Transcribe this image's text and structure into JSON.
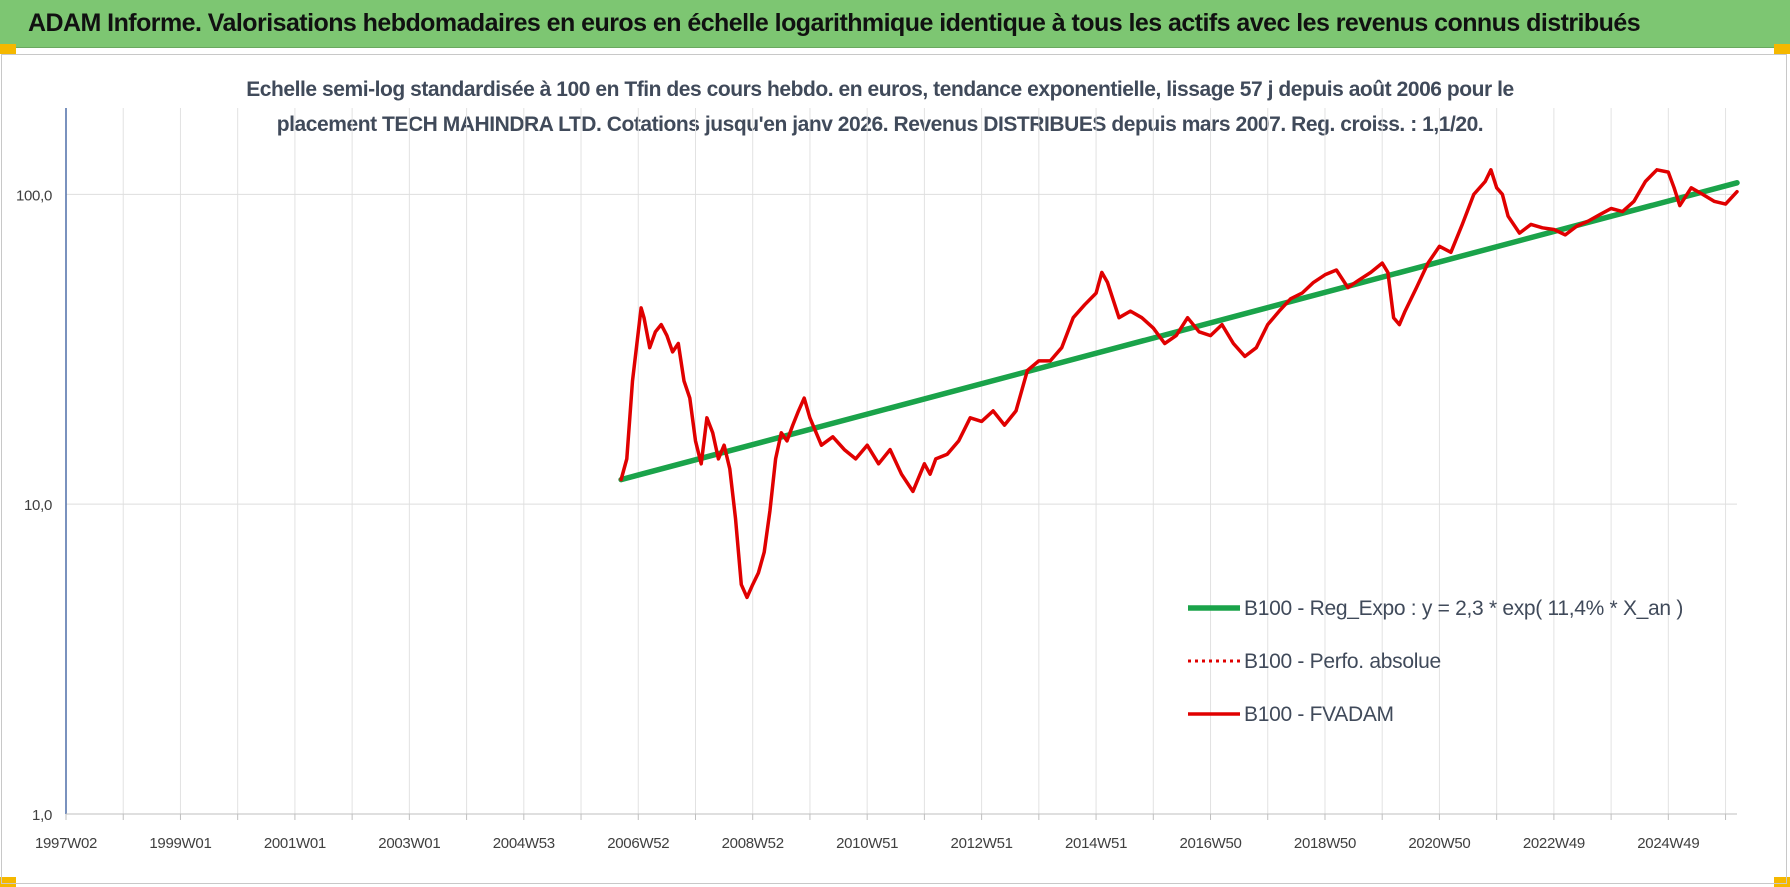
{
  "banner": {
    "title": "ADAM Informe. Valorisations hebdomadaires en euros en échelle logarithmique identique à tous les actifs avec les revenus connus distribués"
  },
  "colors": {
    "banner_bg": "#7dc672",
    "corner_accent": "#f5b800",
    "trend_line": "#1aa34a",
    "perf_line": "#e00000",
    "fvadam_line": "#e00000"
  },
  "chart_data": {
    "type": "line",
    "title_lines": [
      "Echelle semi-log standardisée à 100 en Tfin des cours hebdo. en euros, tendance exponentielle, lissage 57 j depuis août 2006 pour le",
      "placement TECH MAHINDRA  LTD. Cotations jusqu'en janv 2026. Revenus DISTRIBUES depuis mars 2007. Reg. croiss. : 1,1/20."
    ],
    "yscale": "log",
    "ylim": [
      1,
      190
    ],
    "xlim": [
      1997.0,
      2026.2
    ],
    "y_ticks": [
      {
        "value": 1,
        "label": "1,0"
      },
      {
        "value": 10,
        "label": "10,0"
      },
      {
        "value": 100,
        "label": "100,0"
      }
    ],
    "x_ticks": [
      {
        "value": 1997.0,
        "label": "1997W02"
      },
      {
        "value": 1999.0,
        "label": "1999W01"
      },
      {
        "value": 2001.0,
        "label": "2001W01"
      },
      {
        "value": 2003.0,
        "label": "2003W01"
      },
      {
        "value": 2005.0,
        "label": "2004W53"
      },
      {
        "value": 2007.0,
        "label": "2006W52"
      },
      {
        "value": 2009.0,
        "label": "2008W52"
      },
      {
        "value": 2011.0,
        "label": "2010W51"
      },
      {
        "value": 2013.0,
        "label": "2012W51"
      },
      {
        "value": 2015.0,
        "label": "2014W51"
      },
      {
        "value": 2017.0,
        "label": "2016W50"
      },
      {
        "value": 2019.0,
        "label": "2018W50"
      },
      {
        "value": 2021.0,
        "label": "2020W50"
      },
      {
        "value": 2023.0,
        "label": "2022W49"
      },
      {
        "value": 2025.0,
        "label": "2024W49"
      }
    ],
    "x_minor_ticks": [
      1998.0,
      2000.0,
      2002.0,
      2004.0,
      2006.0,
      2008.0,
      2010.0,
      2012.0,
      2014.0,
      2016.0,
      2018.0,
      2020.0,
      2022.0,
      2024.0,
      2026.0
    ],
    "series": [
      {
        "name": "B100 - Reg_Expo : y = 2,3 * exp( 11,4% *  X_an )",
        "style": "solid-thick",
        "x": [
          2006.7,
          2026.2
        ],
        "y": [
          12.0,
          109.0
        ]
      },
      {
        "name": "B100 - Perfo. absolue",
        "style": "dotted",
        "x": [],
        "y": []
      },
      {
        "name": "B100 - FVADAM",
        "style": "solid",
        "x": [
          2006.7,
          2006.8,
          2006.9,
          2007.0,
          2007.05,
          2007.1,
          2007.2,
          2007.3,
          2007.4,
          2007.5,
          2007.6,
          2007.7,
          2007.8,
          2007.9,
          2008.0,
          2008.1,
          2008.2,
          2008.3,
          2008.4,
          2008.5,
          2008.6,
          2008.7,
          2008.8,
          2008.9,
          2009.0,
          2009.1,
          2009.2,
          2009.3,
          2009.4,
          2009.5,
          2009.6,
          2009.7,
          2009.8,
          2009.9,
          2010.0,
          2010.2,
          2010.4,
          2010.6,
          2010.8,
          2011.0,
          2011.2,
          2011.4,
          2011.6,
          2011.8,
          2012.0,
          2012.1,
          2012.2,
          2012.4,
          2012.6,
          2012.8,
          2013.0,
          2013.2,
          2013.4,
          2013.6,
          2013.8,
          2014.0,
          2014.2,
          2014.4,
          2014.6,
          2014.8,
          2015.0,
          2015.1,
          2015.2,
          2015.4,
          2015.6,
          2015.8,
          2016.0,
          2016.2,
          2016.4,
          2016.6,
          2016.8,
          2017.0,
          2017.2,
          2017.4,
          2017.6,
          2017.8,
          2018.0,
          2018.2,
          2018.4,
          2018.6,
          2018.8,
          2019.0,
          2019.2,
          2019.4,
          2019.6,
          2019.8,
          2020.0,
          2020.1,
          2020.2,
          2020.3,
          2020.4,
          2020.6,
          2020.8,
          2021.0,
          2021.2,
          2021.4,
          2021.6,
          2021.8,
          2021.9,
          2022.0,
          2022.1,
          2022.2,
          2022.4,
          2022.6,
          2022.8,
          2023.0,
          2023.2,
          2023.4,
          2023.6,
          2023.8,
          2024.0,
          2024.2,
          2024.4,
          2024.6,
          2024.8,
          2025.0,
          2025.1,
          2025.2,
          2025.4,
          2025.6,
          2025.8,
          2026.0,
          2026.2
        ],
        "y": [
          12.0,
          14.0,
          25.0,
          36.0,
          43.0,
          40.0,
          32.0,
          36.0,
          38.0,
          35.0,
          31.0,
          33.0,
          25.0,
          22.0,
          16.0,
          13.5,
          19.0,
          17.0,
          14.0,
          15.5,
          13.0,
          9.0,
          5.5,
          5.0,
          5.5,
          6.0,
          7.0,
          9.5,
          14.0,
          17.0,
          16.0,
          18.0,
          20.0,
          22.0,
          19.0,
          15.5,
          16.5,
          15.0,
          14.0,
          15.5,
          13.5,
          15.0,
          12.5,
          11.0,
          13.5,
          12.5,
          14.0,
          14.5,
          16.0,
          19.0,
          18.5,
          20.0,
          18.0,
          20.0,
          27.0,
          29.0,
          29.0,
          32.0,
          40.0,
          44.0,
          48.0,
          56.0,
          52.0,
          40.0,
          42.0,
          40.0,
          37.0,
          33.0,
          35.0,
          40.0,
          36.0,
          35.0,
          38.0,
          33.0,
          30.0,
          32.0,
          38.0,
          42.0,
          46.0,
          48.0,
          52.0,
          55.0,
          57.0,
          50.0,
          53.0,
          56.0,
          60.0,
          56.0,
          40.0,
          38.0,
          42.0,
          50.0,
          60.0,
          68.0,
          65.0,
          80.0,
          100.0,
          110.0,
          120.0,
          105.0,
          100.0,
          85.0,
          75.0,
          80.0,
          78.0,
          77.0,
          74.0,
          79.0,
          82.0,
          86.0,
          90.0,
          88.0,
          95.0,
          110.0,
          120.0,
          118.0,
          105.0,
          92.0,
          105.0,
          100.0,
          95.0,
          93.0,
          102.0
        ]
      }
    ],
    "legend": {
      "position": "lower-right",
      "entries": [
        {
          "label": "B100 - Reg_Expo : y = 2,3 * exp( 11,4% *  X_an )",
          "color": "#1aa34a",
          "style": "solid-thick"
        },
        {
          "label": "B100 - Perfo. absolue",
          "color": "#e00000",
          "style": "dotted"
        },
        {
          "label": "B100 - FVADAM",
          "color": "#e00000",
          "style": "solid"
        }
      ]
    }
  }
}
